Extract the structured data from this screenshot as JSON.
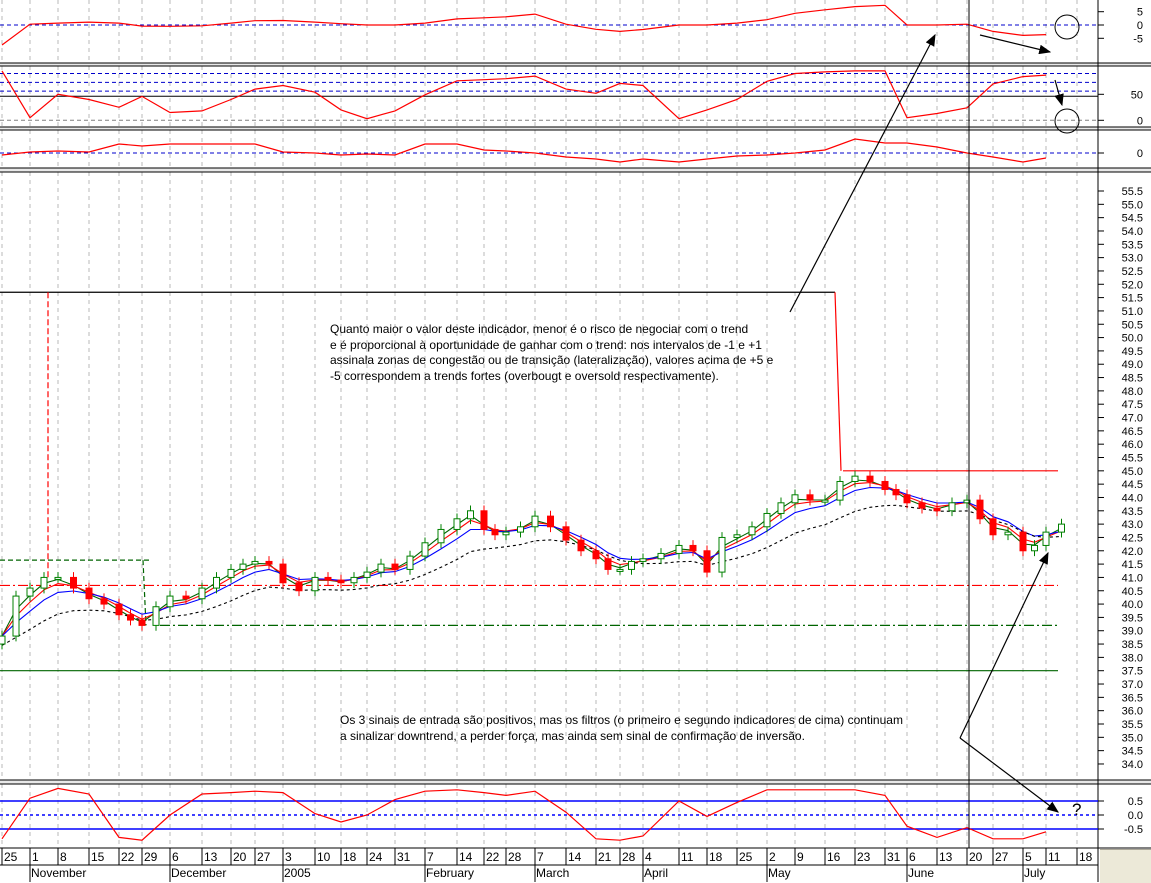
{
  "chart_data": {
    "type": "candlestick-with-indicators",
    "x_axis": {
      "day_ticks": [
        "25",
        "1",
        "8",
        "15",
        "22",
        "29",
        "6",
        "13",
        "20",
        "27",
        "3",
        "10",
        "18",
        "24",
        "31",
        "7",
        "14",
        "22",
        "28",
        "7",
        "14",
        "21",
        "28",
        "4",
        "11",
        "18",
        "25",
        "2",
        "9",
        "16",
        "23",
        "31",
        "6",
        "13",
        "20",
        "27",
        "5",
        "11",
        "18"
      ],
      "months": [
        {
          "label": "November",
          "tick": 1
        },
        {
          "label": "December",
          "tick": 6
        },
        {
          "label": "2005",
          "tick": 10
        },
        {
          "label": "February",
          "tick": 15
        },
        {
          "label": "March",
          "tick": 19
        },
        {
          "label": "April",
          "tick": 23
        },
        {
          "label": "May",
          "tick": 27
        },
        {
          "label": "June",
          "tick": 32
        },
        {
          "label": "July",
          "tick": 36
        }
      ]
    },
    "price": {
      "ylim": [
        33.7,
        56.0
      ],
      "tick_labels": [
        "55.5",
        "55.0",
        "54.5",
        "54.0",
        "53.5",
        "53.0",
        "52.5",
        "52.0",
        "51.5",
        "51.0",
        "50.5",
        "50.0",
        "49.5",
        "49.0",
        "48.5",
        "48.0",
        "47.5",
        "47.0",
        "46.5",
        "46.0",
        "45.5",
        "45.0",
        "44.5",
        "44.0",
        "43.5",
        "43.0",
        "42.5",
        "42.0",
        "41.5",
        "41.0",
        "40.5",
        "40.0",
        "39.5",
        "39.0",
        "38.5",
        "38.0",
        "37.5",
        "37.0",
        "36.5",
        "36.0",
        "35.5",
        "35.0",
        "34.5",
        "34.0"
      ],
      "closes_half_weekly": [
        38.8,
        40.3,
        40.6,
        41.0,
        41.0,
        40.6,
        40.2,
        40.0,
        39.6,
        39.4,
        39.2,
        39.9,
        40.3,
        40.2,
        40.6,
        41.0,
        41.3,
        41.5,
        41.6,
        41.5,
        40.8,
        40.5,
        41.0,
        40.9,
        40.8,
        41.0,
        41.2,
        41.5,
        41.3,
        41.8,
        42.3,
        42.8,
        43.2,
        43.5,
        42.8,
        42.6,
        42.7,
        42.9,
        43.3,
        42.9,
        42.4,
        42.0,
        41.7,
        41.3,
        41.3,
        41.6,
        41.7,
        41.9,
        42.2,
        42.0,
        41.2,
        42.5,
        42.6,
        42.9,
        43.4,
        43.8,
        44.1,
        43.9,
        43.9,
        44.6,
        44.8,
        44.6,
        44.3,
        44.1,
        43.8,
        43.6,
        43.5,
        43.8,
        43.9,
        43.2,
        42.6,
        42.7,
        42.0,
        42.2,
        42.7,
        43.0
      ],
      "levels": [
        {
          "value": 51.7,
          "color": "#000000",
          "style": "solid",
          "to_tick": 29
        },
        {
          "value": 45.0,
          "color": "#ff0000",
          "style": "solid",
          "from_tick": 29
        },
        {
          "value": 40.7,
          "color": "#ff0000",
          "style": "dashdot"
        },
        {
          "value": 41.65,
          "color": "#006400",
          "style": "dashed",
          "to_tick": 5
        },
        {
          "value": 39.2,
          "color": "#006400",
          "style": "dashdot",
          "from_tick": 5
        },
        {
          "value": 37.5,
          "color": "#006400",
          "style": "solid"
        }
      ],
      "moving_average_colors": [
        "#006400",
        "#ff0000",
        "#0000ff",
        "#000000"
      ],
      "up_color": "#008000",
      "down_color": "#ff0000"
    },
    "indicator1": {
      "tick_labels": [
        "5",
        "0",
        "-5"
      ],
      "values_weekly": [
        -7.5,
        0.3,
        0.7,
        1.1,
        0.7,
        -0.4,
        -0.5,
        -0.3,
        0.7,
        1.6,
        1.7,
        1.1,
        0.5,
        0,
        0,
        0.7,
        2.3,
        2.7,
        3.1,
        4.1,
        0.3,
        -1.6,
        -2.4,
        -1.7,
        0,
        0,
        0.7,
        2.0,
        4.4,
        5.7,
        6.9,
        7.4,
        0,
        0,
        0.3,
        -2.4,
        -3.9,
        -3.6
      ],
      "reference": 0
    },
    "indicator2": {
      "tick_labels": [
        "50",
        "0"
      ],
      "values_weekly": [
        95,
        5,
        50,
        40,
        25,
        46,
        15,
        18,
        40,
        60,
        67,
        54,
        20,
        3,
        18,
        49,
        76,
        78,
        80,
        85,
        60,
        52,
        71,
        67,
        3,
        20,
        40,
        75,
        90,
        93,
        95,
        95,
        5,
        13,
        24,
        70,
        84,
        87
      ],
      "levels": [
        90,
        73,
        56
      ],
      "midline": 50
    },
    "indicator3": {
      "tick_labels": [
        "0"
      ],
      "values_weekly": [
        -0.2,
        0.1,
        0.2,
        0.1,
        0.9,
        0.7,
        0.9,
        0.9,
        0.9,
        0.9,
        0.1,
        0,
        -0.2,
        -0.1,
        -0.2,
        0.9,
        0.9,
        0.3,
        0.2,
        0,
        -0.4,
        -0.6,
        -0.9,
        -0.6,
        -0.9,
        -0.6,
        -0.3,
        -0.2,
        0,
        0.3,
        1.4,
        1.0,
        1.0,
        0.6,
        0,
        -0.4,
        -0.9,
        -0.5
      ]
    },
    "indicator4": {
      "tick_labels": [
        "0.5",
        "0.0",
        "-0.5"
      ],
      "values_weekly": [
        -0.85,
        0.6,
        0.95,
        0.75,
        -0.8,
        -0.9,
        0,
        0.75,
        0.8,
        0.85,
        0.8,
        0.05,
        -0.25,
        0,
        0.55,
        0.85,
        0.9,
        0.8,
        0.7,
        0.85,
        0.1,
        -0.85,
        -0.9,
        -0.75,
        0.5,
        -0.05,
        0.45,
        0.9,
        0.9,
        0.9,
        0.9,
        0.7,
        -0.4,
        -0.8,
        -0.45,
        -0.85,
        -0.85,
        -0.6
      ],
      "levels": [
        0.5,
        0,
        -0.5
      ]
    },
    "cursor_tick": 34
  },
  "annotations": {
    "note1": [
      "Quanto maior o valor deste indicador, menor é o risco de negociar com o trend",
      "e é proporcional à oportunidade de ganhar com o trend: nos intervalos de -1 e +1",
      "assinala zonas de congestão ou de transição (lateralização), valores acima de +5 e",
      "-5 correspondem a trends fortes (overbougt e oversold respectivamente)."
    ],
    "note2": [
      "Os 3 sinais de entrada são positivos, mas os filtros (o primeiro e segundo indicadores de cima) continuam",
      "a sinalizar downtrend, a perder força, mas ainda sem sinal de confirmação de inversão."
    ],
    "question_mark": "?"
  }
}
